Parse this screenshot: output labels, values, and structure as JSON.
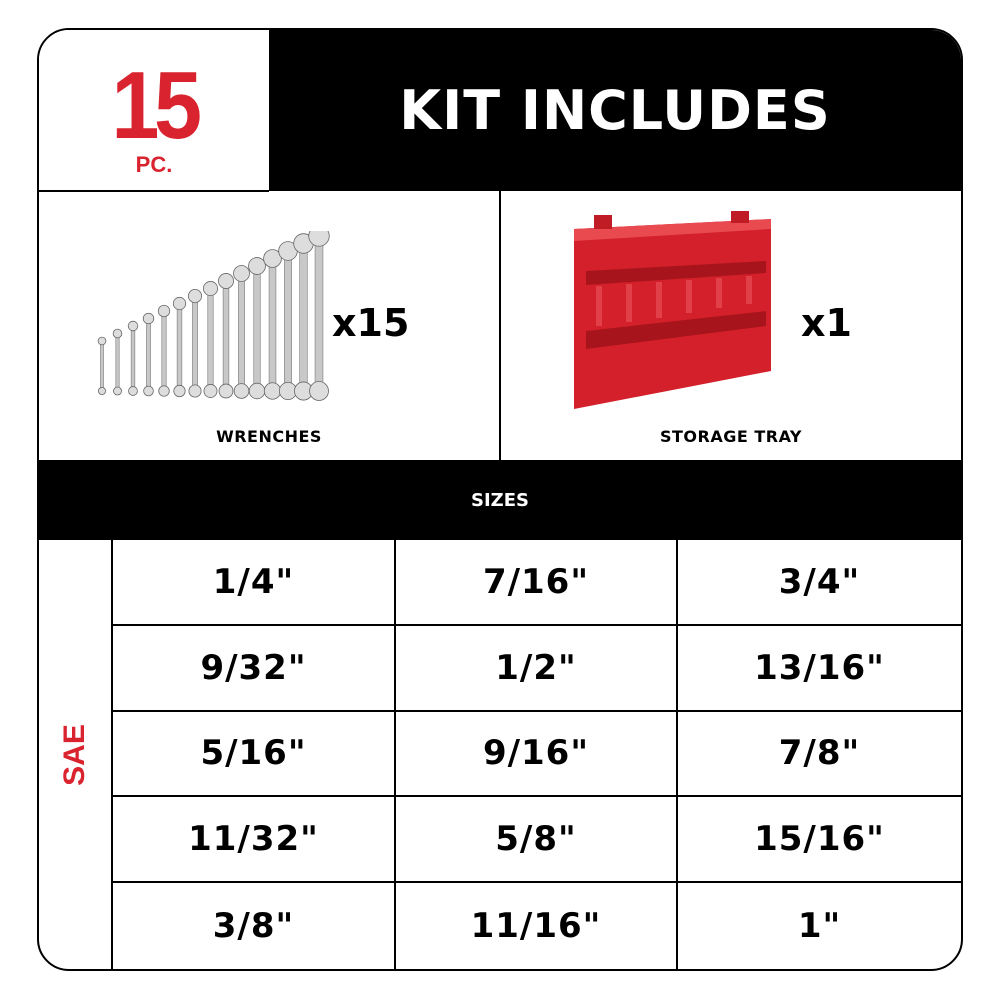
{
  "header": {
    "count": "15",
    "count_unit": "PC.",
    "title": "KIT INCLUDES"
  },
  "items": [
    {
      "label": "WRENCHES",
      "quantity": "x15",
      "icon": "wrench-set-icon"
    },
    {
      "label": "STORAGE TRAY",
      "quantity": "x1",
      "icon": "storage-tray-icon"
    }
  ],
  "sizes": {
    "title": "SIZES",
    "group_label": "SAE",
    "cells": [
      "1/4\"",
      "7/16\"",
      "3/4\"",
      "9/32\"",
      "1/2\"",
      "13/16\"",
      "5/16\"",
      "9/16\"",
      "7/8\"",
      "11/32\"",
      "5/8\"",
      "15/16\"",
      "3/8\"",
      "11/16\"",
      "1\""
    ]
  },
  "colors": {
    "accent": "#d9232e",
    "header_bg": "#000000"
  }
}
